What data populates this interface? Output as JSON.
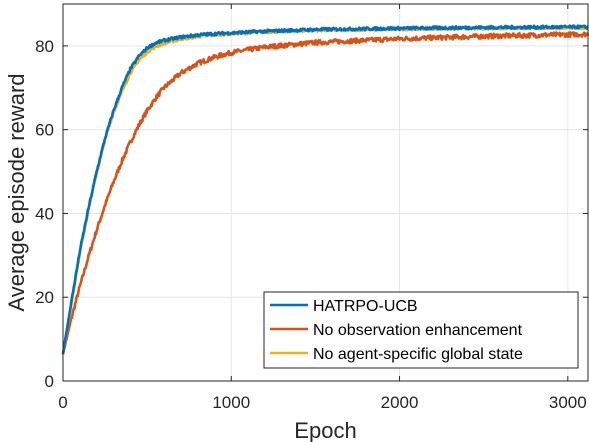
{
  "chart_data": {
    "type": "line",
    "xlabel": "Epoch",
    "ylabel": "Average episode reward",
    "xlim": [
      0,
      3120
    ],
    "ylim": [
      0,
      90
    ],
    "xticks": [
      0,
      1000,
      2000,
      3000
    ],
    "yticks": [
      0,
      20,
      40,
      60,
      80
    ],
    "grid": true,
    "legend_position": "bottom-right",
    "series": [
      {
        "name": "HATRPO-UCB",
        "color": "#0072BD",
        "x": [
          0,
          50,
          100,
          150,
          200,
          250,
          300,
          350,
          400,
          450,
          500,
          550,
          600,
          700,
          800,
          900,
          1000,
          1200,
          1500,
          2000,
          2500,
          3000,
          3120
        ],
        "y": [
          6.5,
          19,
          31,
          41,
          50,
          58,
          64.5,
          70,
          74.5,
          77.5,
          79.5,
          80.7,
          81.3,
          82.1,
          82.6,
          82.9,
          83.1,
          83.5,
          83.9,
          84.2,
          84.4,
          84.5,
          84.5
        ]
      },
      {
        "name": "No observation enhancement",
        "color": "#D95319",
        "x": [
          0,
          50,
          100,
          150,
          200,
          250,
          300,
          350,
          400,
          450,
          500,
          550,
          600,
          700,
          800,
          900,
          1000,
          1200,
          1500,
          2000,
          2500,
          3000,
          3120
        ],
        "y": [
          6.5,
          15,
          22.5,
          29.5,
          36,
          42,
          47.5,
          52.5,
          57,
          61,
          64.5,
          67.5,
          70,
          73.5,
          75.8,
          77.3,
          78.4,
          79.7,
          80.8,
          81.7,
          82.3,
          82.7,
          82.8
        ]
      },
      {
        "name": "No agent-specific global state",
        "color": "#EDB120",
        "x": [
          0,
          50,
          100,
          150,
          200,
          250,
          300,
          350,
          400,
          450,
          500,
          550,
          600,
          700,
          800,
          900,
          1000,
          1200,
          1500,
          2000,
          2500,
          3000,
          3120
        ],
        "y": [
          6.5,
          18.5,
          30.5,
          40.5,
          49.5,
          57.5,
          64,
          69,
          73.5,
          76.5,
          78.5,
          79.8,
          80.6,
          81.6,
          82.2,
          82.6,
          82.9,
          83.3,
          83.7,
          84.0,
          84.2,
          84.3,
          84.3
        ]
      }
    ]
  }
}
